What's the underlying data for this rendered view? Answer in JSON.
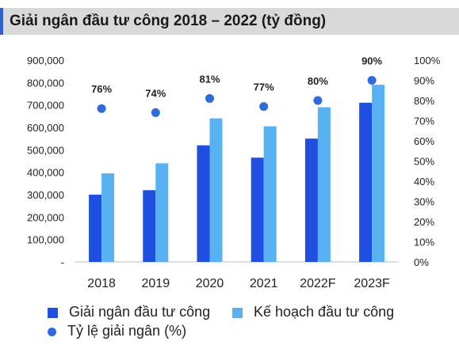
{
  "chart_data": {
    "type": "bar",
    "title": "Giải ngân đầu tư công 2018 – 2022 (tỷ đồng)",
    "categories": [
      "2018",
      "2019",
      "2020",
      "2021",
      "2022F",
      "2023F"
    ],
    "series": [
      {
        "name": "Giải ngân đầu tư công",
        "type": "bar",
        "axis": "left",
        "color": "#1f4fe0",
        "values": [
          300000,
          320000,
          520000,
          465000,
          550000,
          710000
        ]
      },
      {
        "name": "Kế hoạch đầu tư công",
        "type": "bar",
        "axis": "left",
        "color": "#58b1f0",
        "values": [
          395000,
          440000,
          640000,
          605000,
          690000,
          790000
        ]
      },
      {
        "name": "Tỷ lệ giải ngân (%)",
        "type": "scatter",
        "axis": "right",
        "color": "#2f6be0",
        "values": [
          76,
          74,
          81,
          77,
          80,
          90
        ],
        "labels": [
          "76%",
          "74%",
          "81%",
          "77%",
          "80%",
          "90%"
        ]
      }
    ],
    "y_left": {
      "ylim": [
        0,
        900000
      ],
      "tick_labels": [
        "-",
        "100,000",
        "200,000",
        "300,000",
        "400,000",
        "500,000",
        "600,000",
        "700,000",
        "800,000",
        "900,000"
      ]
    },
    "y_right": {
      "ylim": [
        0,
        100
      ],
      "tick_labels": [
        "0%",
        "10%",
        "20%",
        "30%",
        "40%",
        "50%",
        "60%",
        "70%",
        "80%",
        "90%",
        "100%"
      ]
    },
    "grid": false,
    "legend_position": "bottom"
  }
}
